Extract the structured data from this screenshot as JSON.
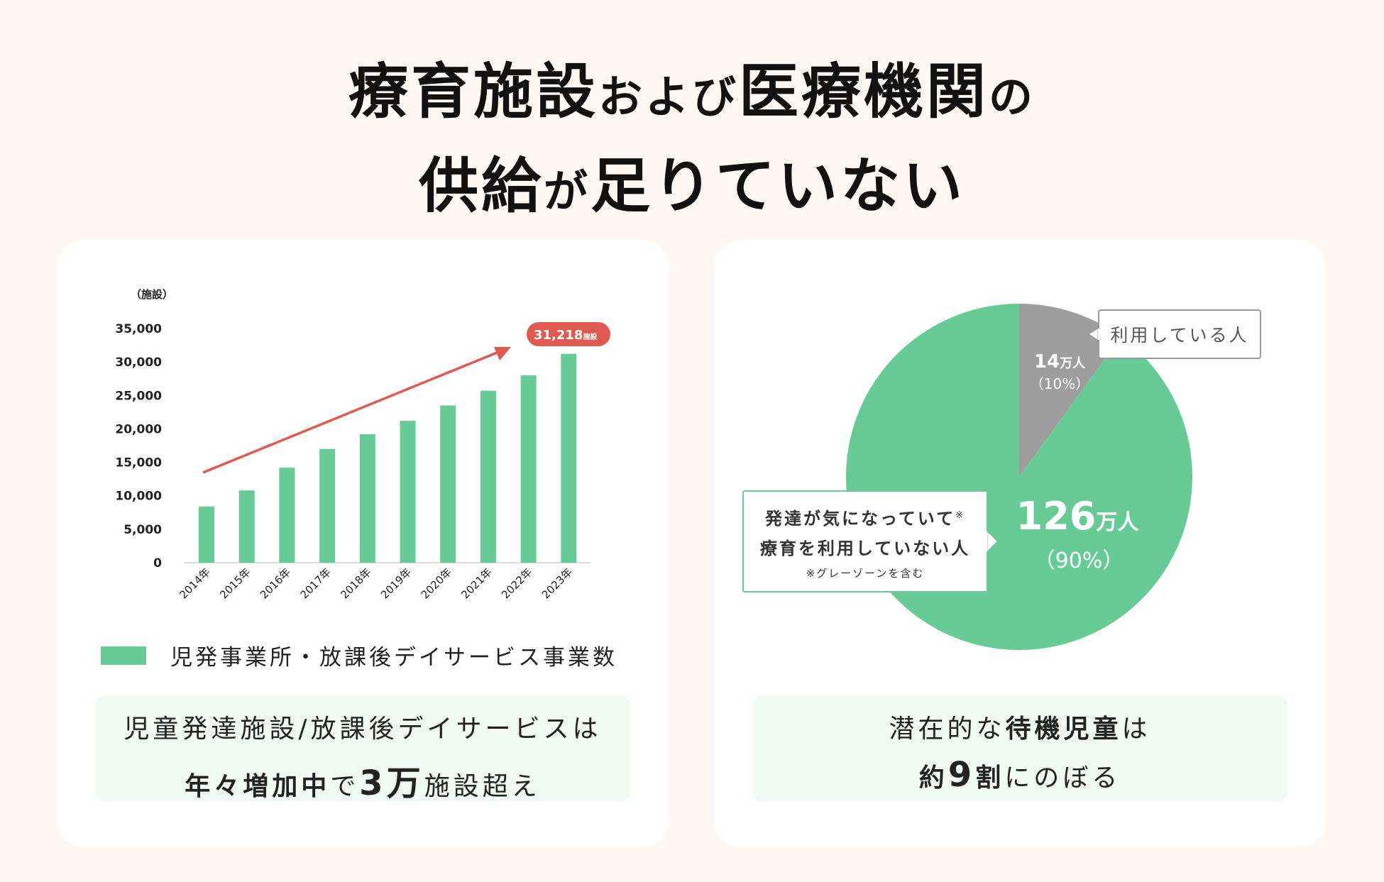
{
  "title": {
    "line1_a": "療育施設",
    "line1_b": "および",
    "line1_c": "医療機関",
    "line1_d": "の",
    "line2_a": "供給",
    "line2_b": "が",
    "line2_c": "足りていない"
  },
  "left_card": {
    "unit": "（施設）",
    "callout": "31,218",
    "callout_unit": "施設",
    "legend": "児発事業所・放課後デイサービス事業数",
    "summary_line1": "児童発達施設/放課後デイサービスは",
    "summary_line2_bold": "年々増加中",
    "summary_line2_a": "で",
    "summary_line2_num": "3万",
    "summary_line2_b": "施設超え"
  },
  "right_card": {
    "using_label": "利用している人",
    "using_value": "14",
    "using_unit": "万人",
    "using_pct": "（10%）",
    "notusing_value": "126",
    "notusing_unit": "万人",
    "notusing_pct": "（90%）",
    "notusing_line1": "発達が気になっていて",
    "notusing_mark": "※",
    "notusing_line2": "療育を利用していない人",
    "notusing_note": "※グレーゾーンを含む",
    "summary_line1_a": "潜在的な",
    "summary_line1_bold": "待機児童",
    "summary_line1_b": "は",
    "summary_line2_a": "約",
    "summary_line2_num": "9",
    "summary_line2_bold": "割",
    "summary_line2_b": "にのぼる"
  },
  "colors": {
    "bar": "#66cb94",
    "arrow": "#e05a52",
    "gray_slice": "#9e9e9e",
    "green_slice": "#66cb94"
  },
  "chart_data": [
    {
      "type": "bar",
      "categories": [
        "2014年",
        "2015年",
        "2016年",
        "2017年",
        "2018年",
        "2019年",
        "2020年",
        "2021年",
        "2022年",
        "2023年"
      ],
      "values": [
        8400,
        10800,
        14200,
        17000,
        19200,
        21200,
        23500,
        25700,
        28000,
        31218
      ],
      "yticks": [
        "0",
        "5,000",
        "10,000",
        "15,000",
        "20,000",
        "25,000",
        "30,000",
        "35,000"
      ],
      "ylim": [
        0,
        35000
      ],
      "ylabel": "（施設）",
      "series": [
        {
          "name": "児発事業所・放課後デイサービス事業数"
        }
      ],
      "legend_position": "bottom-left",
      "grid": false
    },
    {
      "type": "pie",
      "labels": [
        "利用している人",
        "発達が気になっていて療育を利用していない人"
      ],
      "values": [
        14,
        126
      ],
      "percents": [
        10,
        90
      ]
    }
  ]
}
